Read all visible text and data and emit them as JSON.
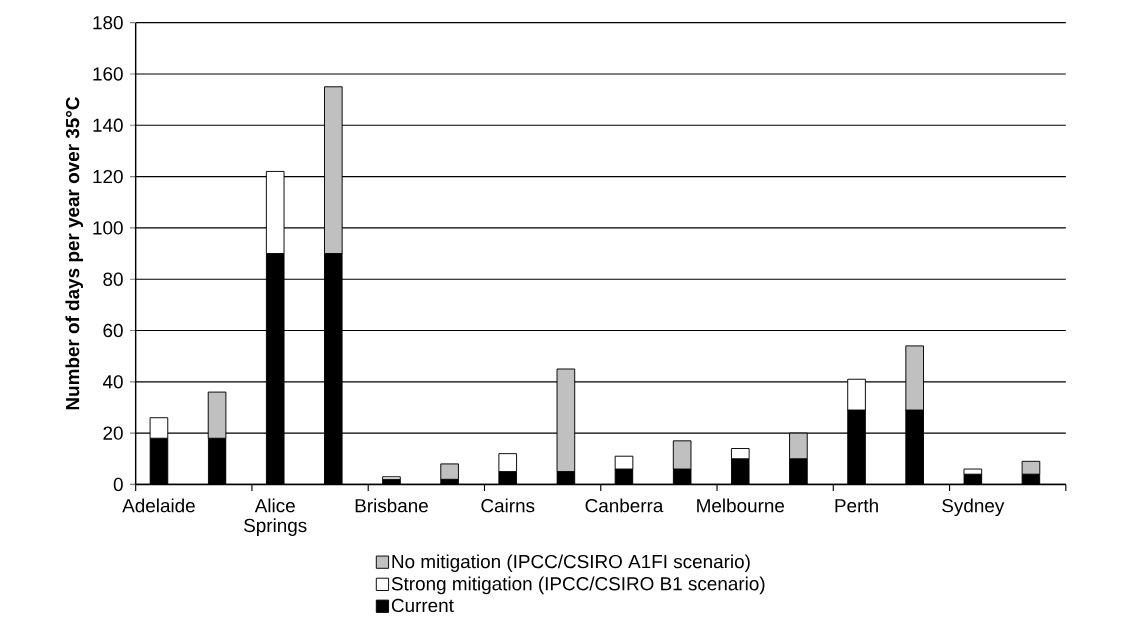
{
  "chart_data": {
    "type": "bar",
    "stacked": true,
    "ylabel": "Number of days per year over 35°C",
    "categories": [
      "Adelaide",
      null,
      "Alice Springs",
      null,
      "Brisbane",
      null,
      "Cairns",
      null,
      "Canberra",
      null,
      "Melbourne",
      null,
      "Perth",
      null,
      "Sydney",
      null
    ],
    "series": [
      {
        "name": "Current",
        "color": "#000000",
        "values": [
          18,
          18,
          90,
          90,
          2,
          2,
          5,
          5,
          6,
          6,
          10,
          10,
          29,
          29,
          4,
          4
        ]
      },
      {
        "name": "Strong mitigation (IPCC/CSIRO B1 scenario)",
        "color": "#ffffff",
        "values": [
          8,
          null,
          32,
          null,
          1,
          null,
          7,
          null,
          5,
          null,
          4,
          null,
          12,
          null,
          2,
          null
        ]
      },
      {
        "name": "No mitigation (IPCC/CSIRO A1FI scenario)",
        "color": "#c0c0c0",
        "values": [
          null,
          18,
          null,
          65,
          null,
          6,
          null,
          40,
          null,
          11,
          null,
          10,
          null,
          25,
          null,
          5
        ]
      }
    ],
    "ylim": [
      0,
      180
    ],
    "yticks": [
      0,
      20,
      40,
      60,
      80,
      100,
      120,
      140,
      160,
      180
    ],
    "grid": "y",
    "legend": "bottom"
  }
}
